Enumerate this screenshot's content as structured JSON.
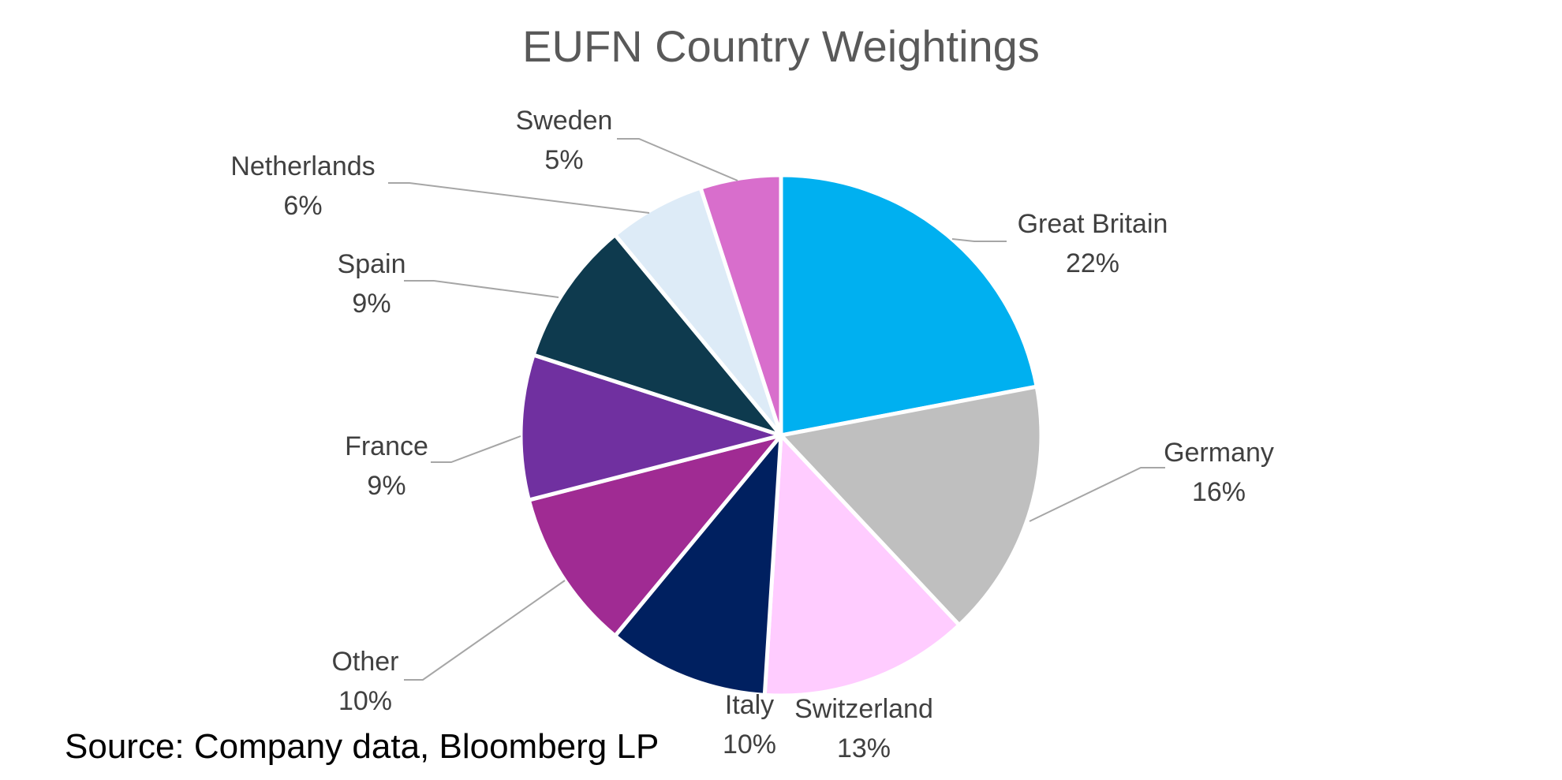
{
  "chart_data": {
    "type": "pie",
    "title": "EUFN Country Weightings",
    "start_angle_deg": 0,
    "direction": "clockwise",
    "slices": [
      {
        "label": "Great Britain",
        "value": 22,
        "display": "22%",
        "color": "#00B0F0"
      },
      {
        "label": "Germany",
        "value": 16,
        "display": "16%",
        "color": "#BFBFBF"
      },
      {
        "label": "Switzerland",
        "value": 13,
        "display": "13%",
        "color": "#FFCCFF"
      },
      {
        "label": "Italy",
        "value": 10,
        "display": "10%",
        "color": "#002060"
      },
      {
        "label": "Other",
        "value": 10,
        "display": "10%",
        "color": "#A02B93"
      },
      {
        "label": "France",
        "value": 9,
        "display": "9%",
        "color": "#7030A0"
      },
      {
        "label": "Spain",
        "value": 9,
        "display": "9%",
        "color": "#0E3A4E"
      },
      {
        "label": "Netherlands",
        "value": 6,
        "display": "6%",
        "color": "#DDEBF7"
      },
      {
        "label": "Sweden",
        "value": 5,
        "display": "5%",
        "color": "#D86ECC"
      }
    ]
  },
  "source": "Source: Company data, Bloomberg LP"
}
